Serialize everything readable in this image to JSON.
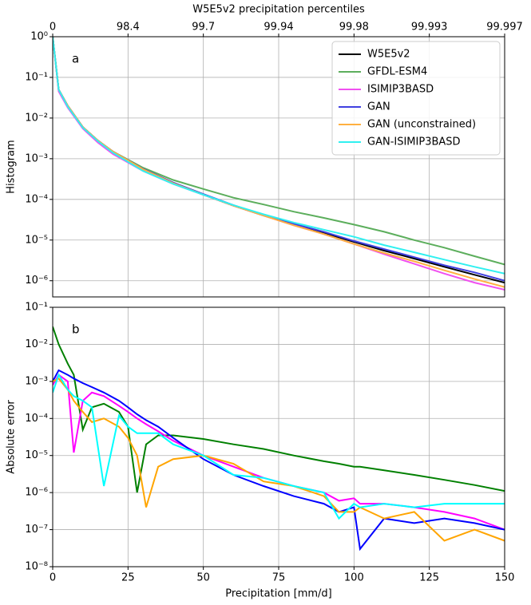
{
  "chart_data": [
    {
      "type": "line",
      "annotation": "a",
      "ylabel": "Histogram",
      "x2label": "W5E5v2 precipitation percentiles",
      "log_y": true,
      "grid": true,
      "legend": "upper right",
      "xlim": [
        0,
        150
      ],
      "ylim": [
        4e-07,
        1
      ],
      "x2ticks": [
        0,
        {
          "value": 25,
          "label": "98.4"
        },
        {
          "value": 50,
          "label": "99.7"
        },
        {
          "value": 75,
          "label": "99.94"
        },
        {
          "value": 100,
          "label": "99.98"
        },
        {
          "value": 125,
          "label": "99.993"
        },
        {
          "value": 150,
          "label": "99.997"
        }
      ],
      "yticks": [
        {
          "value": 1,
          "label": "10⁰"
        },
        {
          "value": 0.1,
          "label": "10⁻¹"
        },
        {
          "value": 0.01,
          "label": "10⁻²"
        },
        {
          "value": 0.001,
          "label": "10⁻³"
        },
        {
          "value": 0.0001,
          "label": "10⁻⁴"
        },
        {
          "value": 1e-05,
          "label": "10⁻⁵"
        },
        {
          "value": 1e-06,
          "label": "10⁻⁶"
        }
      ],
      "x": [
        0,
        2,
        5,
        10,
        15,
        20,
        30,
        40,
        50,
        60,
        70,
        80,
        90,
        100,
        110,
        120,
        130,
        140,
        150
      ],
      "series": [
        {
          "name": "W5E5v2",
          "color": "#000000",
          "values": [
            1,
            0.05,
            0.02,
            0.006,
            0.0028,
            0.0015,
            0.00055,
            0.00025,
            0.00013,
            7e-05,
            4e-05,
            2.4e-05,
            1.5e-05,
            9e-06,
            5.5e-06,
            3.5e-06,
            2.2e-06,
            1.4e-06,
            9e-07
          ]
        },
        {
          "name": "GFDL-ESM4",
          "color": "#5cae5c",
          "values": [
            1,
            0.05,
            0.02,
            0.006,
            0.0028,
            0.0015,
            0.0006,
            0.0003,
            0.00018,
            0.00011,
            7.5e-05,
            5e-05,
            3.5e-05,
            2.4e-05,
            1.6e-05,
            1e-05,
            6.5e-06,
            4e-06,
            2.5e-06
          ]
        },
        {
          "name": "ISIMIP3BASD",
          "color": "#f050f0",
          "values": [
            1,
            0.045,
            0.018,
            0.0055,
            0.0025,
            0.0013,
            0.0005,
            0.00024,
            0.00013,
            7e-05,
            4e-05,
            2.3e-05,
            1.4e-05,
            8e-06,
            4.5e-06,
            2.6e-06,
            1.5e-06,
            9e-07,
            6e-07
          ]
        },
        {
          "name": "GAN",
          "color": "#4040e0",
          "values": [
            1,
            0.05,
            0.02,
            0.006,
            0.0028,
            0.0015,
            0.00056,
            0.00026,
            0.000135,
            7.2e-05,
            4.1e-05,
            2.5e-05,
            1.6e-05,
            9.5e-06,
            6e-06,
            3.8e-06,
            2.4e-06,
            1.6e-06,
            1e-06
          ]
        },
        {
          "name": "GAN (unconstrained)",
          "color": "#ffb040",
          "values": [
            1,
            0.05,
            0.02,
            0.006,
            0.0028,
            0.0015,
            0.00055,
            0.00025,
            0.00013,
            7e-05,
            4e-05,
            2.3e-05,
            1.4e-05,
            8e-06,
            4.8e-06,
            3e-06,
            1.8e-06,
            1.1e-06,
            7e-07
          ]
        },
        {
          "name": "GAN-ISIMIP3BASD",
          "color": "#30f0f0",
          "values": [
            1,
            0.05,
            0.019,
            0.0058,
            0.0027,
            0.0014,
            0.0005,
            0.00024,
            0.00013,
            7.2e-05,
            4.3e-05,
            2.7e-05,
            1.8e-05,
            1.2e-05,
            7.5e-06,
            5e-06,
            3.3e-06,
            2.2e-06,
            1.5e-06
          ]
        }
      ]
    },
    {
      "type": "line",
      "annotation": "b",
      "ylabel": "Absolute error",
      "xlabel": "Precipitation [mm/d]",
      "log_y": true,
      "grid": true,
      "xlim": [
        0,
        150
      ],
      "ylim": [
        1e-08,
        0.1
      ],
      "xticks": [
        0,
        25,
        50,
        75,
        100,
        125,
        150
      ],
      "yticks": [
        {
          "value": 0.1,
          "label": "10⁻¹"
        },
        {
          "value": 0.01,
          "label": "10⁻²"
        },
        {
          "value": 0.001,
          "label": "10⁻³"
        },
        {
          "value": 0.0001,
          "label": "10⁻⁴"
        },
        {
          "value": 1e-05,
          "label": "10⁻⁵"
        },
        {
          "value": 1e-06,
          "label": "10⁻⁶"
        },
        {
          "value": 1e-07,
          "label": "10⁻⁷"
        },
        {
          "value": 1e-08,
          "label": "10⁻⁸"
        }
      ],
      "x": [
        0,
        2,
        5,
        7,
        10,
        13,
        17,
        22,
        25,
        28,
        31,
        35,
        40,
        50,
        60,
        70,
        80,
        90,
        95,
        100,
        102,
        110,
        120,
        130,
        140,
        150
      ],
      "series": [
        {
          "color": "#008000",
          "values": [
            0.03,
            0.01,
            0.003,
            0.0015,
            5e-05,
            0.0002,
            0.00025,
            0.00015,
            6e-05,
            1e-06,
            2e-05,
            3.5e-05,
            3.5e-05,
            2.8e-05,
            2e-05,
            1.5e-05,
            1e-05,
            7e-06,
            6e-06,
            5e-06,
            5e-06,
            4e-06,
            3e-06,
            2.2e-06,
            1.6e-06,
            1.1e-06
          ]
        },
        {
          "color": "#ff00ff",
          "values": [
            0.0008,
            0.0015,
            0.001,
            1.2e-05,
            0.0003,
            0.0005,
            0.0004,
            0.00022,
            0.00015,
            0.0001,
            7e-05,
            4.5e-05,
            2.5e-05,
            1e-05,
            5e-06,
            2.5e-06,
            1.5e-06,
            1e-06,
            6e-07,
            7e-07,
            5e-07,
            5e-07,
            4e-07,
            3e-07,
            2e-07,
            1e-07
          ]
        },
        {
          "color": "#0000ff",
          "values": [
            0.001,
            0.002,
            0.0015,
            0.0012,
            0.0009,
            0.0007,
            0.0005,
            0.0003,
            0.0002,
            0.00013,
            9e-05,
            6e-05,
            3e-05,
            8e-06,
            3e-06,
            1.5e-06,
            8e-07,
            5e-07,
            3e-07,
            4e-07,
            3e-08,
            2e-07,
            1.5e-07,
            2e-07,
            1.5e-07,
            1e-07
          ]
        },
        {
          "color": "#ffa500",
          "values": [
            0.001,
            0.0012,
            0.0006,
            0.0003,
            0.00015,
            8e-05,
            0.0001,
            6e-05,
            3e-05,
            1e-05,
            4e-07,
            5e-06,
            8e-06,
            1e-05,
            6e-06,
            2e-06,
            1.5e-06,
            8e-07,
            3e-07,
            3e-07,
            4e-07,
            2e-07,
            3e-07,
            5e-08,
            1e-07,
            5e-08
          ]
        },
        {
          "color": "#00ffff",
          "values": [
            0.0005,
            0.0015,
            0.0006,
            0.0004,
            0.0003,
            0.0002,
            1.5e-06,
            0.00012,
            6e-05,
            4e-05,
            4e-05,
            4e-05,
            2e-05,
            1e-05,
            3e-06,
            2.5e-06,
            1.5e-06,
            1e-06,
            2e-07,
            5e-07,
            4e-07,
            5e-07,
            4e-07,
            5e-07,
            5e-07,
            5e-07
          ]
        }
      ]
    }
  ]
}
